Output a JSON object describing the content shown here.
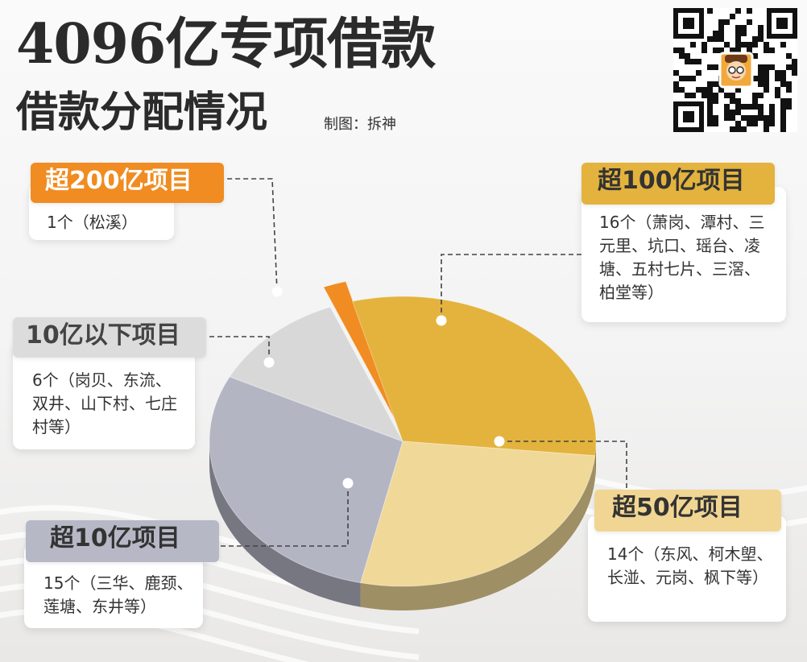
{
  "header": {
    "title_line1": "4096亿专项借款",
    "title_line2": "借款分配情况",
    "credit": "制图：拆神"
  },
  "colors": {
    "orange": "#f08c22",
    "gold": "#e3b33d",
    "light_gray": "#d8d8d8",
    "blue_gray": "#b3b5c3",
    "sand": "#f0d898",
    "text": "#2b2b2b"
  },
  "icons": {
    "qr": "qr-code-icon",
    "mascot": "mascot-avatar-icon"
  },
  "chart_data": {
    "type": "pie",
    "unit": "个",
    "categories": [
      "超200亿项目",
      "超100亿项目",
      "超50亿项目",
      "超10亿项目",
      "10亿以下项目"
    ],
    "values": [
      1,
      16,
      14,
      15,
      6
    ],
    "details": [
      "1个（松溪）",
      "16个（萧岗、潭村、三元里、坑口、瑶台、凌塘、五村七片、三滘、柏堂等）",
      "14个（东风、柯木塱、长湴、元岗、枫下等）",
      "15个（三华、鹿颈、莲塘、东井等）",
      "6个（岗贝、东流、双井、山下村、七庄村等）"
    ],
    "colors": [
      "#f08c22",
      "#e3b33d",
      "#f0d898",
      "#b3b5c3",
      "#d8d8d8"
    ]
  }
}
